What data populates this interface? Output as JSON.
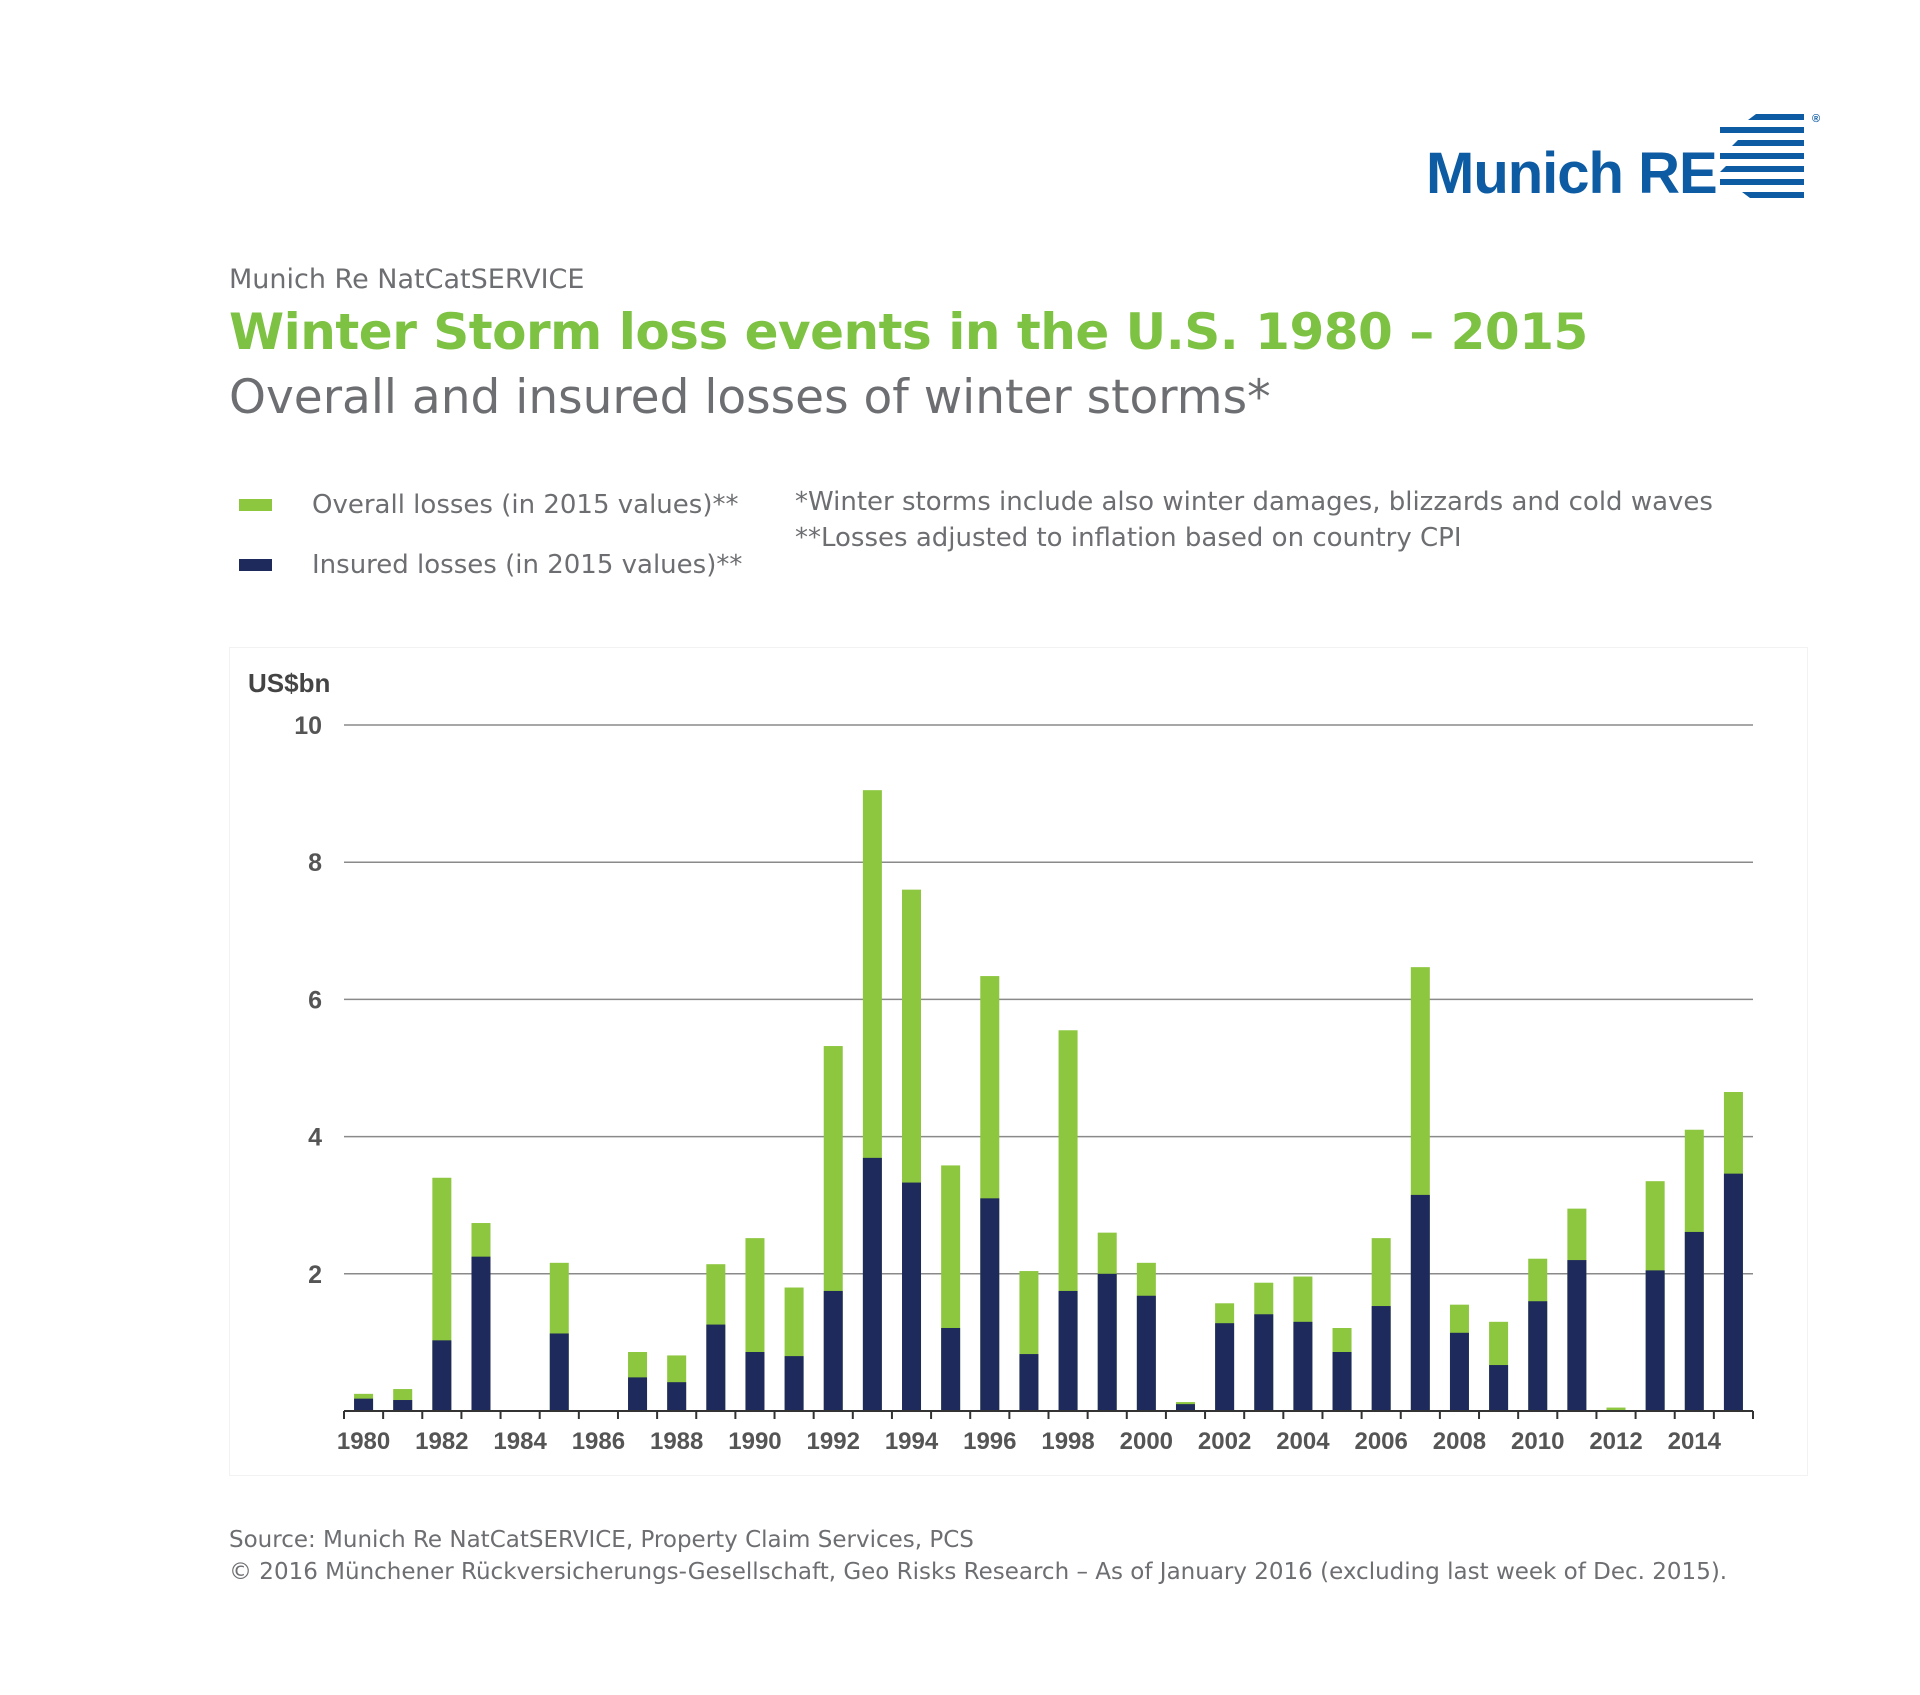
{
  "header": {
    "logo_text": "Munich RE",
    "logo_mark": "®",
    "kicker": "Munich Re NatCatSERVICE",
    "title": "Winter Storm loss events in the U.S. 1980 – 2015",
    "subtitle": "Overall and insured losses of winter storms*"
  },
  "legend": [
    {
      "label": "Overall losses (in 2015 values)**",
      "color": "#8dc63f"
    },
    {
      "label": "Insured losses (in 2015 values)**",
      "color": "#1f2a5c"
    }
  ],
  "notes": [
    "*Winter storms include also winter damages, blizzards and cold waves",
    "**Losses adjusted to inflation based on country CPI"
  ],
  "footer": {
    "source": "Source: Munich Re NatCatSERVICE, Property Claim Services, PCS",
    "copyright": "© 2016 Münchener Rückversicherungs-Gesellschaft, Geo Risks Research – As of January 2016 (excluding last week of Dec. 2015)."
  },
  "colors": {
    "overall": "#8dc63f",
    "insured": "#1f2a5c",
    "brand": "#0d5ba3",
    "title": "#7dc242"
  },
  "chart_data": {
    "type": "bar",
    "stacked": "overlay",
    "ylabel": "US$bn",
    "ylim": [
      0,
      10
    ],
    "yticks": [
      2,
      4,
      6,
      8,
      10
    ],
    "grid": true,
    "categories": [
      1980,
      1981,
      1982,
      1983,
      1984,
      1985,
      1986,
      1987,
      1988,
      1989,
      1990,
      1991,
      1992,
      1993,
      1994,
      1995,
      1996,
      1997,
      1998,
      1999,
      2000,
      2001,
      2002,
      2003,
      2004,
      2005,
      2006,
      2007,
      2008,
      2009,
      2010,
      2011,
      2012,
      2013,
      2014,
      2015
    ],
    "xtick_labels": [
      "1980",
      "1982",
      "1984",
      "1986",
      "1988",
      "1990",
      "1992",
      "1994",
      "1996",
      "1998",
      "2000",
      "2002",
      "2004",
      "2006",
      "2008",
      "2010",
      "2012",
      "2014"
    ],
    "series": [
      {
        "name": "Overall losses (in 2015 values)",
        "values": [
          0.25,
          0.32,
          3.4,
          2.74,
          0,
          2.16,
          0,
          0.86,
          0.81,
          2.14,
          2.52,
          1.8,
          5.32,
          9.05,
          7.6,
          3.58,
          6.34,
          2.04,
          5.55,
          2.6,
          2.16,
          0.13,
          1.57,
          1.87,
          1.96,
          1.21,
          2.52,
          6.47,
          1.55,
          1.3,
          2.22,
          2.95,
          0.05,
          3.35,
          4.1,
          4.65
        ]
      },
      {
        "name": "Insured losses (in 2015 values)",
        "values": [
          0.18,
          0.16,
          1.03,
          2.25,
          0,
          1.13,
          0,
          0.49,
          0.42,
          1.26,
          0.86,
          0.8,
          1.75,
          3.69,
          3.33,
          1.21,
          3.1,
          0.83,
          1.75,
          2.0,
          1.68,
          0.1,
          1.28,
          1.41,
          1.3,
          0.86,
          1.53,
          3.15,
          1.14,
          0.67,
          1.6,
          2.2,
          0,
          2.05,
          2.61,
          3.46
        ]
      }
    ]
  }
}
